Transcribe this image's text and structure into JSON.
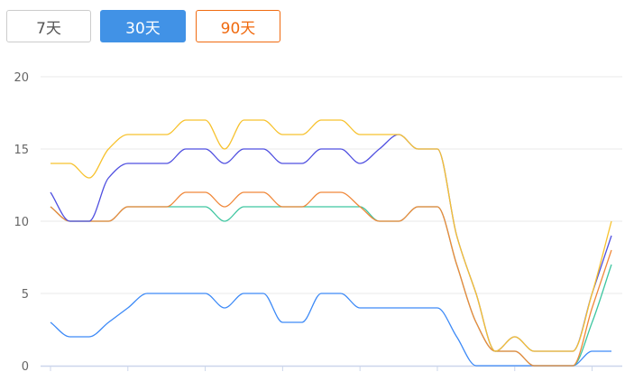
{
  "range_buttons": [
    {
      "label": "7天",
      "state": "default"
    },
    {
      "label": "30天",
      "state": "active"
    },
    {
      "label": "90天",
      "state": "highlight"
    }
  ],
  "colors": {
    "active_button": "#4192e6",
    "highlight_button": "#f06a0f"
  },
  "chart_data": {
    "type": "line",
    "smooth": true,
    "grid": "horizontal",
    "ylim": [
      0,
      20
    ],
    "yticks": [
      "0",
      "5",
      "10",
      "15",
      "20"
    ],
    "x_count": 30,
    "series": [
      {
        "color": "#f7c22e",
        "values": [
          14,
          14,
          13,
          15,
          16,
          16,
          16,
          17,
          17,
          15,
          17,
          17,
          16,
          16,
          17,
          17,
          16,
          16,
          16,
          15,
          15,
          9,
          5,
          1,
          2,
          1,
          1,
          1,
          5,
          10
        ]
      },
      {
        "color": "#4f4fe0",
        "values": [
          12,
          10,
          10,
          13,
          14,
          14,
          14,
          15,
          15,
          14,
          15,
          15,
          14,
          14,
          15,
          15,
          14,
          15,
          16,
          15,
          15,
          9,
          5,
          1,
          2,
          1,
          1,
          1,
          5,
          9
        ]
      },
      {
        "color": "#f0883a",
        "values": [
          11,
          10,
          10,
          10,
          11,
          11,
          11,
          12,
          12,
          11,
          12,
          12,
          11,
          11,
          12,
          12,
          11,
          10,
          10,
          11,
          11,
          7,
          3,
          1,
          1,
          0,
          0,
          0,
          4,
          8
        ]
      },
      {
        "color": "#3ec6a0",
        "values": [
          11,
          10,
          10,
          10,
          11,
          11,
          11,
          11,
          11,
          10,
          11,
          11,
          11,
          11,
          11,
          11,
          11,
          10,
          10,
          11,
          11,
          7,
          3,
          1,
          1,
          0,
          0,
          0,
          3,
          7
        ]
      },
      {
        "color": "#3d8af7",
        "values": [
          3,
          2,
          2,
          3,
          4,
          5,
          5,
          5,
          5,
          4,
          5,
          5,
          3,
          3,
          5,
          5,
          4,
          4,
          4,
          4,
          4,
          2,
          0,
          0,
          0,
          0,
          0,
          0,
          1,
          1
        ]
      }
    ]
  }
}
